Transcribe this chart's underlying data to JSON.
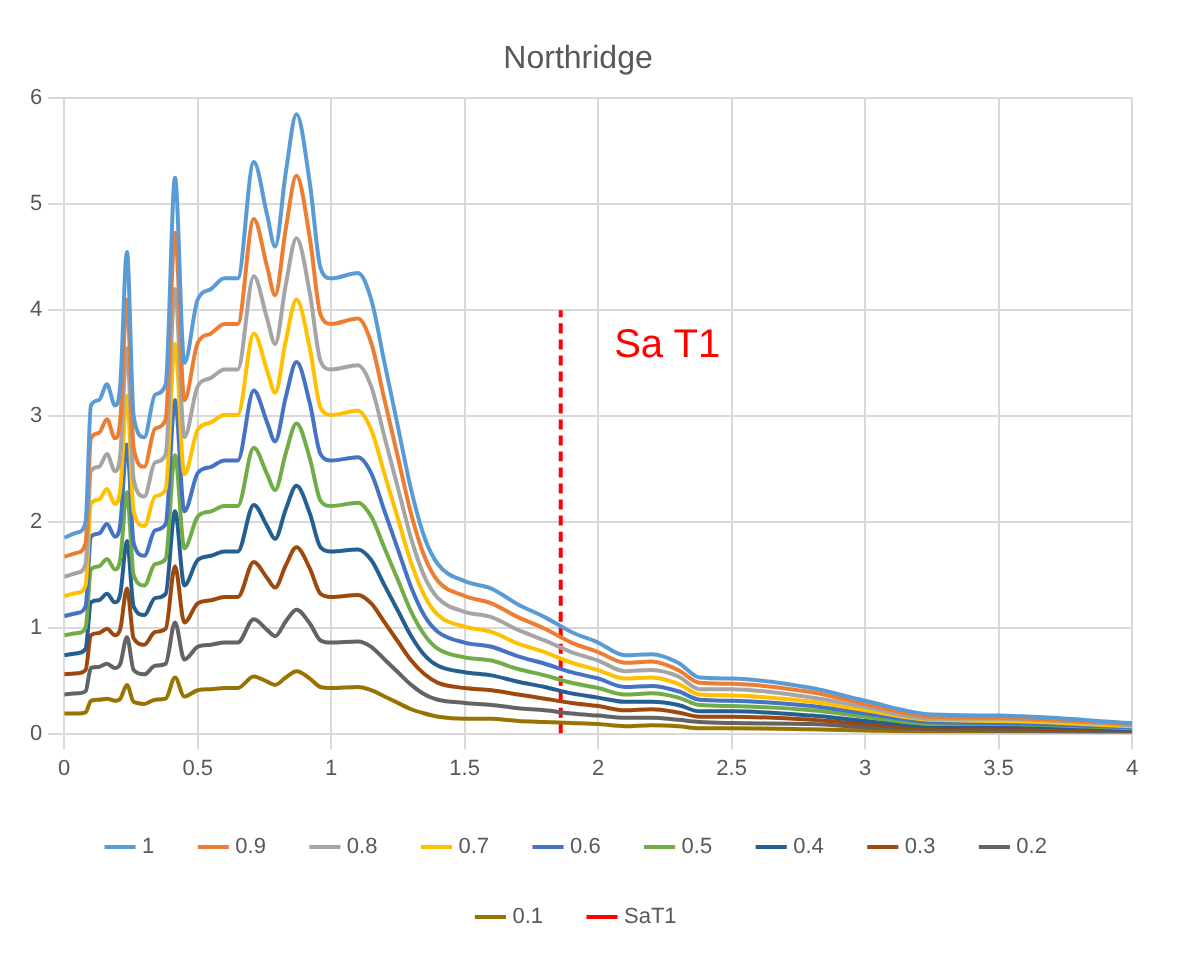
{
  "chart_data": {
    "type": "line",
    "title": "Northridge",
    "x": [
      0,
      0.05,
      0.08,
      0.1,
      0.13,
      0.16,
      0.19,
      0.21,
      0.235,
      0.26,
      0.3,
      0.34,
      0.38,
      0.415,
      0.45,
      0.5,
      0.55,
      0.6,
      0.65,
      0.71,
      0.76,
      0.79,
      0.83,
      0.87,
      0.92,
      0.96,
      1.0,
      1.1,
      1.15,
      1.2,
      1.25,
      1.3,
      1.35,
      1.4,
      1.5,
      1.6,
      1.7,
      1.8,
      1.9,
      2.0,
      2.1,
      2.2,
      2.3,
      2.38,
      2.5,
      2.8,
      3.0,
      3.25,
      3.5,
      4.0
    ],
    "series": [
      {
        "name": "1",
        "color": "#5b9bd5",
        "values": [
          1.85,
          1.9,
          2.0,
          3.1,
          3.15,
          3.3,
          3.1,
          3.3,
          4.55,
          3.0,
          2.8,
          3.2,
          3.3,
          5.25,
          3.5,
          4.1,
          4.2,
          4.3,
          4.3,
          5.4,
          4.9,
          4.6,
          5.3,
          5.85,
          5.2,
          4.4,
          4.3,
          4.35,
          4.1,
          3.5,
          2.9,
          2.3,
          1.85,
          1.6,
          1.44,
          1.37,
          1.22,
          1.1,
          0.96,
          0.86,
          0.74,
          0.75,
          0.67,
          0.53,
          0.52,
          0.43,
          0.31,
          0.18,
          0.17,
          0.1
        ]
      },
      {
        "name": "0.9",
        "color": "#ed7d31",
        "values": [
          1.67,
          1.71,
          1.8,
          2.79,
          2.84,
          2.97,
          2.79,
          2.97,
          4.1,
          2.7,
          2.52,
          2.88,
          2.97,
          4.73,
          3.15,
          3.69,
          3.78,
          3.87,
          3.87,
          4.86,
          4.41,
          4.14,
          4.77,
          5.27,
          4.68,
          3.96,
          3.87,
          3.92,
          3.69,
          3.15,
          2.61,
          2.07,
          1.67,
          1.44,
          1.3,
          1.23,
          1.1,
          0.99,
          0.86,
          0.77,
          0.67,
          0.68,
          0.6,
          0.48,
          0.47,
          0.39,
          0.28,
          0.16,
          0.15,
          0.09
        ]
      },
      {
        "name": "0.8",
        "color": "#a5a5a5",
        "values": [
          1.48,
          1.52,
          1.6,
          2.48,
          2.52,
          2.64,
          2.48,
          2.64,
          3.64,
          2.4,
          2.24,
          2.56,
          2.64,
          4.2,
          2.8,
          3.28,
          3.36,
          3.44,
          3.44,
          4.32,
          3.92,
          3.68,
          4.24,
          4.68,
          4.16,
          3.52,
          3.44,
          3.48,
          3.28,
          2.8,
          2.32,
          1.84,
          1.48,
          1.28,
          1.15,
          1.1,
          0.98,
          0.88,
          0.77,
          0.69,
          0.59,
          0.6,
          0.54,
          0.42,
          0.42,
          0.34,
          0.25,
          0.14,
          0.14,
          0.08
        ]
      },
      {
        "name": "0.7",
        "color": "#ffc000",
        "values": [
          1.3,
          1.33,
          1.4,
          2.17,
          2.21,
          2.31,
          2.17,
          2.31,
          3.19,
          2.1,
          1.96,
          2.24,
          2.31,
          3.68,
          2.45,
          2.87,
          2.94,
          3.01,
          3.01,
          3.78,
          3.43,
          3.22,
          3.71,
          4.1,
          3.64,
          3.08,
          3.01,
          3.05,
          2.87,
          2.45,
          2.03,
          1.61,
          1.3,
          1.12,
          1.01,
          0.96,
          0.85,
          0.77,
          0.67,
          0.6,
          0.52,
          0.53,
          0.47,
          0.37,
          0.36,
          0.3,
          0.22,
          0.13,
          0.12,
          0.07
        ]
      },
      {
        "name": "0.6",
        "color": "#4472c4",
        "values": [
          1.11,
          1.14,
          1.2,
          1.86,
          1.89,
          1.98,
          1.86,
          1.98,
          2.73,
          1.8,
          1.68,
          1.92,
          1.98,
          3.15,
          2.1,
          2.46,
          2.52,
          2.58,
          2.58,
          3.24,
          2.94,
          2.76,
          3.18,
          3.51,
          3.12,
          2.64,
          2.58,
          2.61,
          2.46,
          2.1,
          1.74,
          1.38,
          1.11,
          0.96,
          0.86,
          0.82,
          0.73,
          0.66,
          0.58,
          0.52,
          0.44,
          0.45,
          0.4,
          0.32,
          0.31,
          0.26,
          0.19,
          0.11,
          0.1,
          0.06
        ]
      },
      {
        "name": "0.5",
        "color": "#70ad47",
        "values": [
          0.93,
          0.95,
          1.0,
          1.55,
          1.58,
          1.65,
          1.55,
          1.65,
          2.28,
          1.5,
          1.4,
          1.6,
          1.65,
          2.63,
          1.75,
          2.05,
          2.1,
          2.15,
          2.15,
          2.7,
          2.45,
          2.3,
          2.65,
          2.93,
          2.6,
          2.2,
          2.15,
          2.18,
          2.05,
          1.75,
          1.45,
          1.15,
          0.93,
          0.8,
          0.72,
          0.69,
          0.61,
          0.55,
          0.48,
          0.43,
          0.37,
          0.38,
          0.34,
          0.27,
          0.26,
          0.22,
          0.16,
          0.09,
          0.09,
          0.05
        ]
      },
      {
        "name": "0.4",
        "color": "#255e91",
        "values": [
          0.74,
          0.76,
          0.8,
          1.24,
          1.26,
          1.32,
          1.24,
          1.32,
          1.82,
          1.2,
          1.12,
          1.28,
          1.32,
          2.1,
          1.4,
          1.64,
          1.68,
          1.72,
          1.72,
          2.16,
          1.96,
          1.84,
          2.12,
          2.34,
          2.08,
          1.76,
          1.72,
          1.74,
          1.64,
          1.4,
          1.16,
          0.92,
          0.74,
          0.64,
          0.58,
          0.55,
          0.49,
          0.44,
          0.38,
          0.34,
          0.3,
          0.3,
          0.27,
          0.21,
          0.21,
          0.17,
          0.12,
          0.07,
          0.07,
          0.04
        ]
      },
      {
        "name": "0.3",
        "color": "#9e480e",
        "values": [
          0.56,
          0.57,
          0.6,
          0.93,
          0.95,
          0.99,
          0.93,
          0.99,
          1.37,
          0.9,
          0.84,
          0.96,
          0.99,
          1.58,
          1.05,
          1.23,
          1.26,
          1.29,
          1.29,
          1.62,
          1.47,
          1.38,
          1.59,
          1.76,
          1.56,
          1.32,
          1.29,
          1.31,
          1.23,
          1.05,
          0.87,
          0.69,
          0.56,
          0.48,
          0.43,
          0.41,
          0.37,
          0.33,
          0.29,
          0.26,
          0.22,
          0.23,
          0.2,
          0.16,
          0.16,
          0.13,
          0.09,
          0.05,
          0.05,
          0.03
        ]
      },
      {
        "name": "0.2",
        "color": "#636363",
        "values": [
          0.37,
          0.38,
          0.4,
          0.62,
          0.63,
          0.66,
          0.62,
          0.66,
          0.91,
          0.6,
          0.56,
          0.64,
          0.66,
          1.05,
          0.7,
          0.82,
          0.84,
          0.86,
          0.86,
          1.08,
          0.98,
          0.92,
          1.06,
          1.17,
          1.04,
          0.88,
          0.86,
          0.87,
          0.82,
          0.7,
          0.58,
          0.46,
          0.37,
          0.32,
          0.29,
          0.27,
          0.24,
          0.22,
          0.19,
          0.17,
          0.15,
          0.15,
          0.13,
          0.11,
          0.1,
          0.09,
          0.06,
          0.04,
          0.03,
          0.02
        ]
      },
      {
        "name": "0.1",
        "color": "#997300",
        "values": [
          0.19,
          0.19,
          0.2,
          0.31,
          0.32,
          0.33,
          0.31,
          0.33,
          0.46,
          0.3,
          0.28,
          0.32,
          0.33,
          0.53,
          0.35,
          0.41,
          0.42,
          0.43,
          0.43,
          0.54,
          0.49,
          0.46,
          0.53,
          0.59,
          0.52,
          0.44,
          0.43,
          0.44,
          0.41,
          0.35,
          0.29,
          0.23,
          0.19,
          0.16,
          0.14,
          0.14,
          0.12,
          0.11,
          0.1,
          0.09,
          0.07,
          0.08,
          0.07,
          0.05,
          0.05,
          0.04,
          0.03,
          0.02,
          0.02,
          0.01
        ]
      },
      {
        "name": "SaT1",
        "color": "#ff0000",
        "line_style": "dashed",
        "x": [
          1.86,
          1.86
        ],
        "values": [
          0,
          4
        ]
      }
    ],
    "annotations": [
      "Sa T1"
    ],
    "xlim": [
      0,
      4
    ],
    "xticks": [
      0,
      0.5,
      1,
      1.5,
      2,
      2.5,
      3,
      3.5,
      4
    ],
    "ylim": [
      0,
      6
    ],
    "yticks": [
      0,
      1,
      2,
      3,
      4,
      5,
      6
    ],
    "grid": true,
    "legend": "bottom",
    "marker": "none",
    "line_style": "solid"
  }
}
